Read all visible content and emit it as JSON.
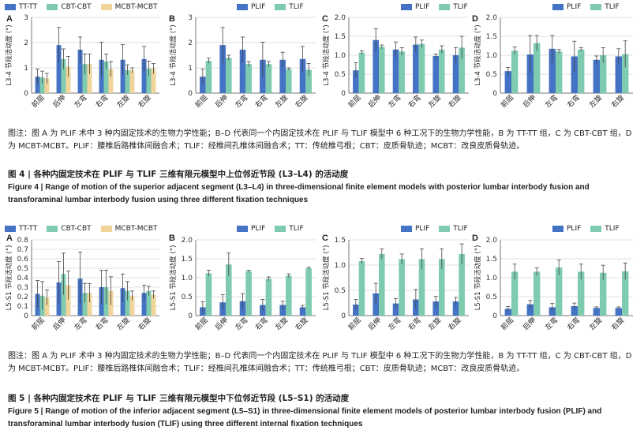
{
  "colors": {
    "tt": "#4472c4",
    "cbt": "#7ecbb0",
    "mcbt": "#f0d49a",
    "plif": "#4472c4",
    "tlif": "#7ecbb0"
  },
  "fig4": {
    "legend_a": [
      "TT-TT",
      "CBT-CBT",
      "MCBT-MCBT"
    ],
    "legend_b": [
      "PLIF",
      "TLIF"
    ],
    "ylabel_cn": "节段活动度 (°)",
    "ylabel_seg": "L3-4",
    "note": "图注：图 A 为 PLIF 术中 3 种内固定技术的生物力学性能；B–D 代表同一个内固定技术在 PLIF 与 TLIF 模型中 6 种工况下的生物力学性能，B 为 TT-TT 组，C 为 CBT-CBT 组，D 为 MCBT-MCBT。PLIF：腰椎后路椎体间融合术；TLIF：经椎间孔椎体间融合术；TT：传统椎弓根；CBT：皮质骨轨迹；MCBT：改良皮质骨轨迹。",
    "title_cn": "图 4 | 各种内固定技术在 PLIF 与 TLIF 三维有限元模型中上位邻近节段 (L3–L4) 的活动度",
    "title_en": "Figure 4  |  Range of motion of the superior adjacent segment (L3–L4) in three-dimensional finite element models with posterior lumbar interbody fusion and transforaminal lumbar interbody fusion using three different fixation techniques"
  },
  "fig5": {
    "legend_a": [
      "TT-TT",
      "CBT-CBT",
      "MCBT-MCBT"
    ],
    "legend_b": [
      "PLIF",
      "TLIF"
    ],
    "ylabel_cn": "节段活动度 (°)",
    "ylabel_seg": "L5-S1",
    "note": "图注：图 A 为 PLIF 术中 3 种内固定技术的生物力学性能；B–D 代表同一个内固定技术在 PLIF 与 TLIF 模型中 6 种工况下的生物力学性能，B 为 TT-TT 组，C 为 CBT-CBT 组，D 为 MCBT-MCBT。PLIF：腰椎后路椎体间融合术；TLIF：经椎间孔椎体间融合术；TT：传统椎弓根；CBT：皮质骨轨迹；MCBT：改良皮质骨轨迹。",
    "title_cn": "图 5 | 各种内固定技术在 PLIF 与 TLIF 三维有限元模型中下位邻近节段 (L5–S1) 的活动度",
    "title_en": "Figure 5  |  Range of motion of the inferior adjacent segment (L5–S1) in three-dimensional finite element models of posterior lumbar interbody fusion (PLIF) and transforaminal lumbar interbody fusion (TLIF) using three different internal fixation techniques"
  },
  "chart_data": [
    {
      "id": "4A",
      "type": "bar",
      "panel": "A",
      "categories": [
        "前屈",
        "后伸",
        "左弯",
        "右弯",
        "左旋",
        "右旋"
      ],
      "ylim": [
        0,
        3
      ],
      "yticks": [
        0,
        1,
        2,
        3
      ],
      "series": [
        {
          "name": "TT-TT",
          "values": [
            0.65,
            1.9,
            1.72,
            1.32,
            1.32,
            1.35
          ],
          "err": [
            0.3,
            0.7,
            0.5,
            0.7,
            0.6,
            0.5
          ]
        },
        {
          "name": "CBT-CBT",
          "values": [
            0.62,
            1.35,
            1.15,
            1.25,
            0.92,
            0.97
          ],
          "err": [
            0.25,
            0.4,
            0.4,
            0.3,
            0.2,
            0.3
          ]
        },
        {
          "name": "MCBT-MCBT",
          "values": [
            0.58,
            1.05,
            1.15,
            0.95,
            0.9,
            0.97
          ],
          "err": [
            0.2,
            0.4,
            0.4,
            0.3,
            0.1,
            0.2
          ]
        }
      ]
    },
    {
      "id": "4B",
      "type": "bar",
      "panel": "B",
      "categories": [
        "前屈",
        "后伸",
        "左弯",
        "右弯",
        "左旋",
        "右旋"
      ],
      "ylim": [
        0,
        3
      ],
      "yticks": [
        0,
        1,
        2,
        3
      ],
      "series": [
        {
          "name": "PLIF",
          "values": [
            0.65,
            1.9,
            1.72,
            1.32,
            1.32,
            1.35
          ],
          "err": [
            0.3,
            0.7,
            0.5,
            0.7,
            0.3,
            0.5
          ]
        },
        {
          "name": "TLIF",
          "values": [
            1.28,
            1.4,
            1.15,
            1.15,
            0.95,
            0.92
          ],
          "err": [
            0.1,
            0.1,
            0.1,
            0.1,
            0.05,
            0.25
          ]
        }
      ]
    },
    {
      "id": "4C",
      "type": "bar",
      "panel": "C",
      "categories": [
        "前屈",
        "后伸",
        "左弯",
        "右弯",
        "左旋",
        "右旋"
      ],
      "ylim": [
        0,
        2
      ],
      "yticks": [
        0,
        0.5,
        1.0,
        1.5,
        2.0
      ],
      "series": [
        {
          "name": "PLIF",
          "values": [
            0.6,
            1.4,
            1.15,
            1.28,
            0.98,
            1.0
          ],
          "err": [
            0.2,
            0.3,
            0.2,
            0.2,
            0.05,
            0.2
          ]
        },
        {
          "name": "TLIF",
          "values": [
            1.07,
            1.22,
            1.1,
            1.3,
            1.15,
            1.2
          ],
          "err": [
            0.05,
            0.05,
            0.1,
            0.1,
            0.1,
            0.3
          ]
        }
      ]
    },
    {
      "id": "4D",
      "type": "bar",
      "panel": "D",
      "categories": [
        "前屈",
        "后伸",
        "左弯",
        "右弯",
        "左旋",
        "右旋"
      ],
      "ylim": [
        0,
        2
      ],
      "yticks": [
        0,
        0.5,
        1.0,
        1.5,
        2.0
      ],
      "series": [
        {
          "name": "PLIF",
          "values": [
            0.58,
            1.02,
            1.17,
            0.97,
            0.88,
            0.97
          ],
          "err": [
            0.1,
            0.5,
            0.35,
            0.4,
            0.1,
            0.2
          ]
        },
        {
          "name": "TLIF",
          "values": [
            1.12,
            1.32,
            1.1,
            1.15,
            1.0,
            1.03
          ],
          "err": [
            0.1,
            0.2,
            0.05,
            0.05,
            0.2,
            0.35
          ]
        }
      ]
    },
    {
      "id": "5A",
      "type": "bar",
      "panel": "A",
      "categories": [
        "前屈",
        "后伸",
        "左弯",
        "右弯",
        "左旋",
        "右旋"
      ],
      "ylim": [
        0,
        0.8
      ],
      "yticks": [
        0,
        0.1,
        0.2,
        0.3,
        0.4,
        0.5,
        0.6,
        0.7,
        0.8
      ],
      "series": [
        {
          "name": "TT-TT",
          "values": [
            0.23,
            0.35,
            0.39,
            0.3,
            0.29,
            0.24
          ],
          "err": [
            0.14,
            0.22,
            0.28,
            0.18,
            0.15,
            0.08
          ]
        },
        {
          "name": "CBT-CBT",
          "values": [
            0.21,
            0.44,
            0.24,
            0.3,
            0.26,
            0.26
          ],
          "err": [
            0.15,
            0.22,
            0.1,
            0.18,
            0.1,
            0.05
          ]
        },
        {
          "name": "MCBT-MCBT",
          "values": [
            0.19,
            0.32,
            0.24,
            0.26,
            0.21,
            0.22
          ],
          "err": [
            0.08,
            0.15,
            0.1,
            0.15,
            0.05,
            0.04
          ]
        }
      ]
    },
    {
      "id": "5B",
      "type": "bar",
      "panel": "B",
      "categories": [
        "前屈",
        "后伸",
        "左弯",
        "右弯",
        "左旋",
        "右旋"
      ],
      "ylim": [
        0,
        2
      ],
      "yticks": [
        0,
        0.5,
        1.0,
        1.5,
        2.0
      ],
      "series": [
        {
          "name": "PLIF",
          "values": [
            0.22,
            0.35,
            0.38,
            0.28,
            0.28,
            0.22
          ],
          "err": [
            0.15,
            0.2,
            0.2,
            0.15,
            0.1,
            0.05
          ]
        },
        {
          "name": "TLIF",
          "values": [
            1.12,
            1.35,
            1.17,
            0.97,
            1.05,
            1.25
          ],
          "err": [
            0.08,
            0.3,
            0.03,
            0.05,
            0.05,
            0.03
          ]
        }
      ]
    },
    {
      "id": "5C",
      "type": "bar",
      "panel": "C",
      "categories": [
        "前屈",
        "后伸",
        "左弯",
        "右弯",
        "左旋",
        "右旋"
      ],
      "ylim": [
        0,
        1.5
      ],
      "yticks": [
        0,
        0.5,
        1.0,
        1.5
      ],
      "series": [
        {
          "name": "PLIF",
          "values": [
            0.22,
            0.44,
            0.24,
            0.32,
            0.28,
            0.28
          ],
          "err": [
            0.1,
            0.2,
            0.1,
            0.2,
            0.1,
            0.08
          ]
        },
        {
          "name": "TLIF",
          "values": [
            1.08,
            1.22,
            1.12,
            1.12,
            1.12,
            1.22
          ],
          "err": [
            0.05,
            0.1,
            0.1,
            0.2,
            0.2,
            0.2
          ]
        }
      ]
    },
    {
      "id": "5D",
      "type": "bar",
      "panel": "D",
      "categories": [
        "前屈",
        "后伸",
        "左弯",
        "右弯",
        "左旋",
        "右旋"
      ],
      "ylim": [
        0,
        2
      ],
      "yticks": [
        0,
        0.5,
        1.0,
        1.5,
        2.0
      ],
      "series": [
        {
          "name": "PLIF",
          "values": [
            0.18,
            0.3,
            0.22,
            0.25,
            0.2,
            0.2
          ],
          "err": [
            0.06,
            0.1,
            0.1,
            0.08,
            0.03,
            0.03
          ]
        },
        {
          "name": "TLIF",
          "values": [
            1.16,
            1.16,
            1.27,
            1.16,
            1.13,
            1.17
          ],
          "err": [
            0.2,
            0.1,
            0.2,
            0.2,
            0.2,
            0.22
          ]
        }
      ]
    }
  ]
}
